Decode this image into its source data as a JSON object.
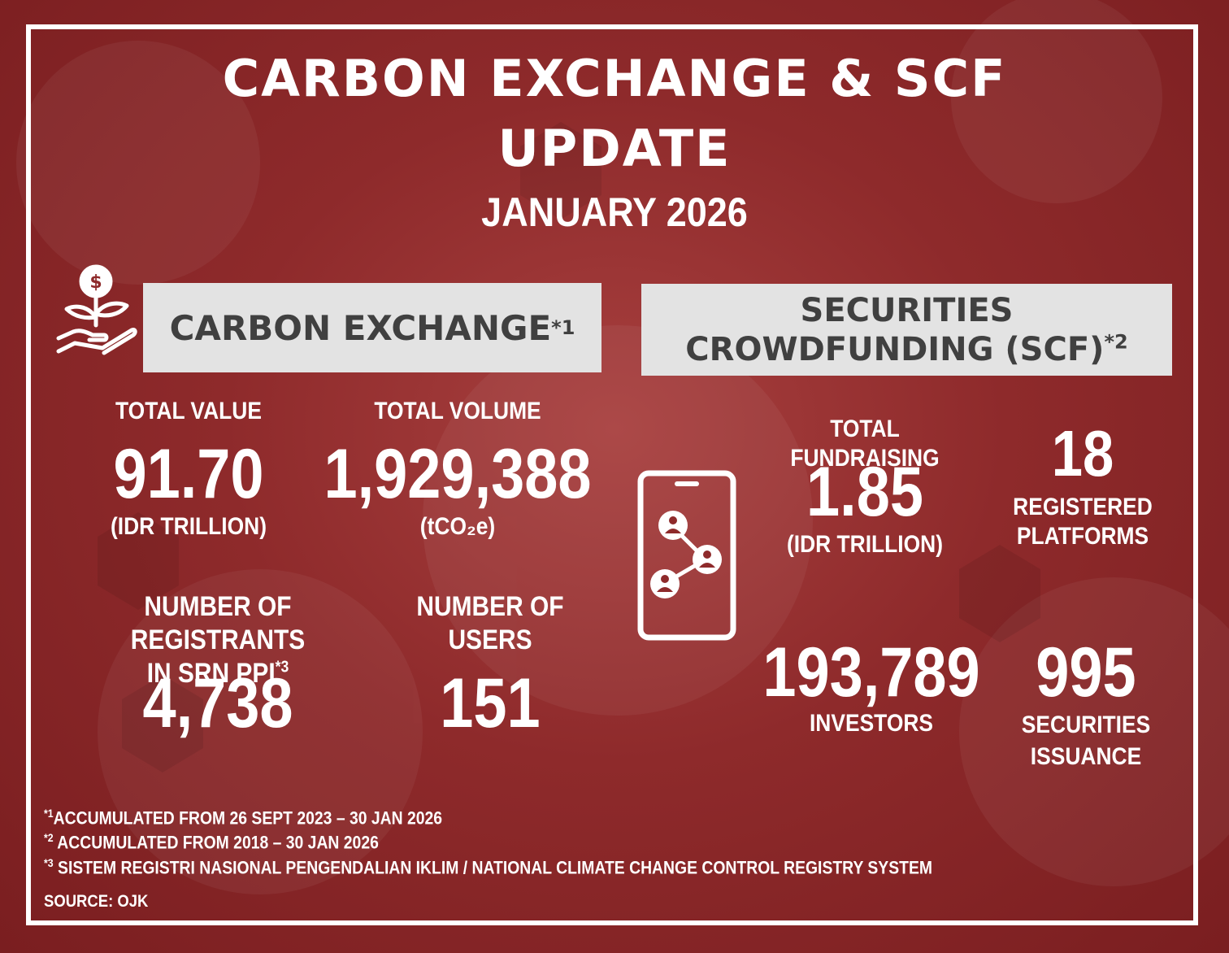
{
  "title": {
    "line1": "CARBON EXCHANGE & SCF",
    "line2": "UPDATE",
    "date": "JANUARY 2026"
  },
  "carbon_exchange": {
    "heading": "CARBON EXCHANGE",
    "heading_note": "*1",
    "total_value": {
      "label": "TOTAL VALUE",
      "value": "91.70",
      "unit": "(IDR TRILLION)"
    },
    "total_volume": {
      "label": "TOTAL VOLUME",
      "value": "1,929,388",
      "unit": "(tCO₂e)"
    },
    "registrants": {
      "label_line1": "NUMBER OF REGISTRANTS",
      "label_line2": "IN SRN PPI",
      "label_note": "*3",
      "value": "4,738"
    },
    "users": {
      "label_line1": "NUMBER OF",
      "label_line2": "USERS",
      "value": "151"
    }
  },
  "scf": {
    "heading_line1": "SECURITIES",
    "heading_line2": "CROWDFUNDING (SCF)",
    "heading_note": "*2",
    "total_fundraising": {
      "label": "TOTAL FUNDRAISING",
      "value": "1.85",
      "unit": "(IDR TRILLION)"
    },
    "platforms": {
      "value": "18",
      "label_line1": "REGISTERED",
      "label_line2": "PLATFORMS"
    },
    "investors": {
      "value": "193,789",
      "label": "INVESTORS"
    },
    "issuance": {
      "value": "995",
      "label_line1": "SECURITIES",
      "label_line2": "ISSUANCE"
    }
  },
  "footnotes": [
    {
      "mark": "*1",
      "text": "ACCUMULATED FROM 26 SEPT 2023 – 30 JAN 2026"
    },
    {
      "mark": "*2",
      "text": " ACCUMULATED FROM 2018 – 30 JAN 2026"
    },
    {
      "mark": "*3",
      "text": " SISTEM REGISTRI NASIONAL PENGENDALIAN IKLIM / NATIONAL CLIMATE CHANGE CONTROL REGISTRY SYSTEM"
    }
  ],
  "source": "SOURCE: OJK",
  "icons": [
    "plant-money-hand-icon",
    "smartphone-network-icon"
  ],
  "colors": {
    "background": "#8e2a2b",
    "panel": "#e3e3e3",
    "panel_text": "#404040",
    "text": "#ffffff"
  }
}
